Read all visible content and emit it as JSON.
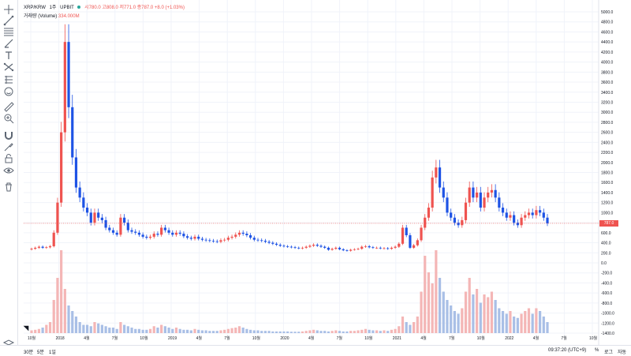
{
  "legend": {
    "symbol": "XRP/KRW",
    "interval": "1주",
    "exchange": "UPBIT",
    "ohlc": "시780.0 고808.0 저771.0 종787.0 +8.0 (+1.03%)",
    "volume_label": "거래량 (Volume)",
    "volume_value": "334.000M"
  },
  "colors": {
    "up": "#ef5350",
    "down": "#1e53e5",
    "vol_up": "#f4b6b6",
    "vol_down": "#a9bfe6",
    "grid": "#f0f3fa",
    "accent": "#26a69a"
  },
  "last_price": "787.0",
  "axis": {
    "y_ticks": [
      "5000.0",
      "4800.0",
      "4600.0",
      "4400.0",
      "4200.0",
      "4000.0",
      "3800.0",
      "3600.0",
      "3400.0",
      "3200.0",
      "3000.0",
      "2800.0",
      "2600.0",
      "2400.0",
      "2200.0",
      "2000.0",
      "1800.0",
      "1600.0",
      "1400.0",
      "1200.0",
      "1000.0",
      "800.0",
      "600.0",
      "400.0",
      "200.0",
      "0.0",
      "-200.0",
      "-400.0",
      "-600.0",
      "-800.0",
      "-1000.0",
      "-1200.0",
      "-1400.0"
    ],
    "x_ticks": [
      "10월",
      "2018",
      "4월",
      "7월",
      "10월",
      "2019",
      "4월",
      "7월",
      "10월",
      "2020",
      "4월",
      "7월",
      "10월",
      "2021",
      "4월",
      "7월",
      "10월",
      "2022",
      "4월",
      "7월",
      "10월"
    ]
  },
  "toolbar": {
    "icons": [
      "crosshair-icon",
      "trend-line-icon",
      "fib-icon",
      "brush-icon",
      "text-icon",
      "pattern-icon",
      "forecast-icon",
      "emoji-icon",
      "ruler-icon",
      "zoom-icon",
      "magnet-icon",
      "lock-drawings-icon",
      "lock-icon",
      "eye-icon",
      "trash-icon"
    ]
  },
  "bottom": {
    "ranges": [
      "30분",
      "5분",
      "1일"
    ],
    "time": "09:37:20 (UTC+9)",
    "percent": "%",
    "log": "로그",
    "auto": "자동"
  },
  "chart_data": {
    "type": "candlestick",
    "x_ticks": [
      "10월",
      "2018",
      "4월",
      "7월",
      "10월",
      "2019",
      "4월",
      "7월",
      "10월",
      "2020",
      "4월",
      "7월",
      "10월",
      "2021",
      "4월",
      "7월",
      "10월",
      "2022",
      "4월",
      "7월",
      "10월"
    ],
    "ylim": [
      -1400,
      5000
    ],
    "close_series": [
      280,
      300,
      320,
      300,
      310,
      330,
      600,
      1200,
      2600,
      4400,
      3100,
      2100,
      1500,
      1300,
      1100,
      1000,
      800,
      1000,
      900,
      850,
      700,
      650,
      600,
      560,
      900,
      800,
      650,
      620,
      600,
      560,
      520,
      500,
      520,
      580,
      560,
      700,
      650,
      600,
      560,
      600,
      580,
      530,
      500,
      480,
      520,
      480,
      460,
      450,
      440,
      430,
      420,
      450,
      460,
      500,
      520,
      560,
      600,
      580,
      550,
      500,
      460,
      450,
      440,
      420,
      400,
      380,
      360,
      340,
      330,
      320,
      310,
      300,
      290,
      300,
      320,
      340,
      360,
      340,
      320,
      300,
      260,
      280,
      300,
      270,
      250,
      240,
      260,
      270,
      280,
      320,
      330,
      310,
      300,
      300,
      290,
      290,
      280,
      300,
      320,
      380,
      700,
      550,
      300,
      350,
      450,
      700,
      900,
      1100,
      1700,
      1900,
      1500,
      1300,
      1000,
      900,
      800,
      750,
      850,
      1200,
      1500,
      1300,
      1400,
      1100,
      1300,
      1400,
      1450,
      1300,
      1100,
      1000,
      900,
      950,
      800,
      750,
      900,
      950,
      1000,
      950,
      1050,
      1000,
      900,
      787
    ],
    "volume_series_note": "weekly volume bars (relative)",
    "volume_series": [
      10,
      12,
      15,
      20,
      30,
      40,
      120,
      200,
      300,
      160,
      100,
      80,
      60,
      40,
      30,
      30,
      25,
      40,
      35,
      30,
      25,
      20,
      20,
      15,
      40,
      30,
      25,
      20,
      15,
      15,
      12,
      12,
      15,
      25,
      20,
      30,
      25,
      20,
      15,
      20,
      15,
      12,
      12,
      10,
      15,
      12,
      10,
      10,
      8,
      8,
      8,
      10,
      12,
      15,
      18,
      20,
      25,
      20,
      15,
      12,
      10,
      10,
      8,
      8,
      8,
      6,
      6,
      6,
      6,
      6,
      5,
      5,
      5,
      6,
      8,
      10,
      12,
      10,
      8,
      8,
      6,
      8,
      10,
      8,
      6,
      6,
      8,
      8,
      10,
      12,
      15,
      12,
      10,
      10,
      8,
      10,
      8,
      12,
      15,
      25,
      60,
      40,
      30,
      40,
      60,
      150,
      280,
      220,
      180,
      300,
      200,
      150,
      120,
      100,
      80,
      70,
      90,
      150,
      200,
      140,
      160,
      110,
      140,
      130,
      150,
      120,
      90,
      80,
      70,
      80,
      60,
      55,
      70,
      80,
      90,
      70,
      90,
      80,
      60,
      40
    ]
  }
}
